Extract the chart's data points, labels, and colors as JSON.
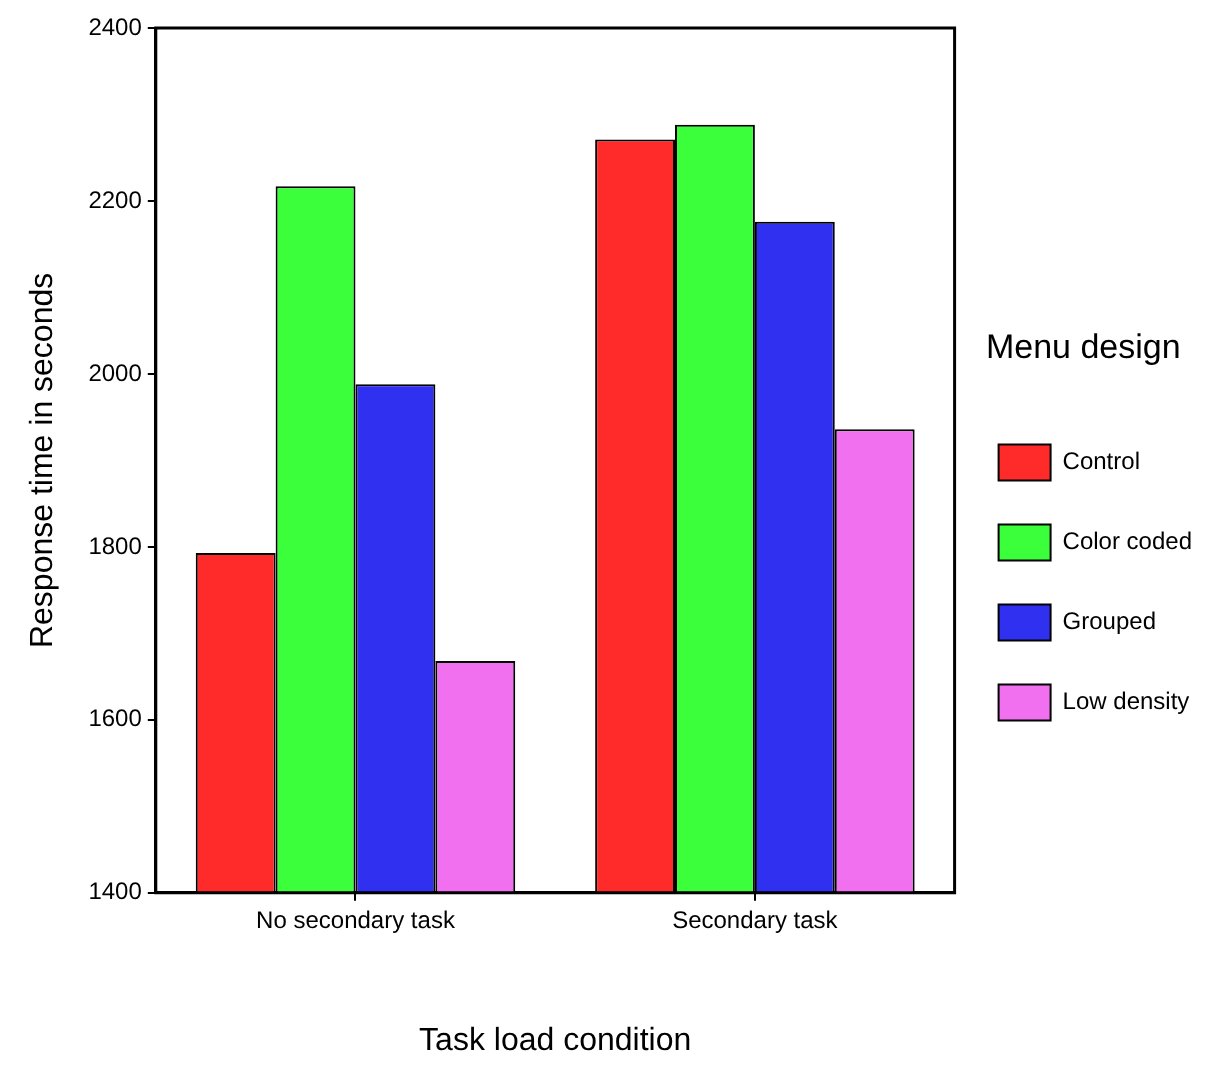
{
  "chart_data": {
    "type": "bar",
    "xlabel": "Task load condition",
    "ylabel": "Response time in seconds",
    "legend_title": "Menu design",
    "categories": [
      "No secondary task",
      "Secondary task"
    ],
    "series": [
      {
        "name": "Control",
        "color": "#ff2a2a",
        "values": [
          1793,
          2271
        ]
      },
      {
        "name": "Color coded",
        "color": "#3cff3c",
        "values": [
          2217,
          2288
        ]
      },
      {
        "name": "Grouped",
        "color": "#3030f0",
        "values": [
          1988,
          2176
        ]
      },
      {
        "name": "Low density",
        "color": "#f070f0",
        "values": [
          1668,
          1936
        ]
      }
    ],
    "ylim": [
      1400,
      2400
    ],
    "yticks": [
      1400,
      1600,
      1800,
      2000,
      2200,
      2400
    ],
    "grid": false,
    "legend": "right"
  }
}
